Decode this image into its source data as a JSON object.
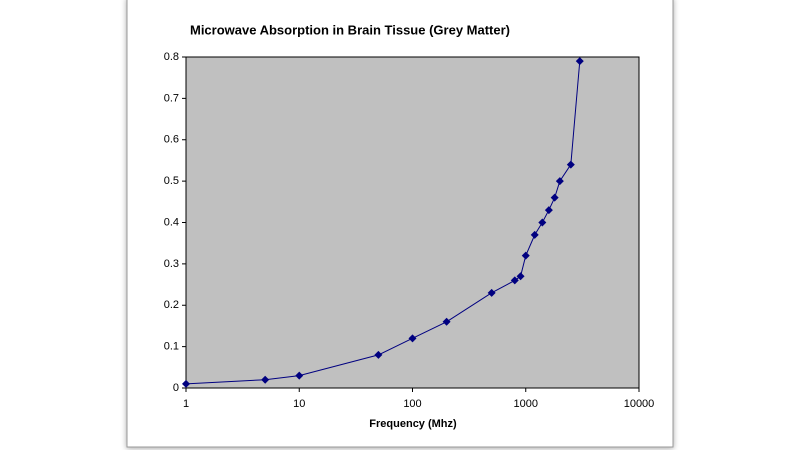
{
  "chart_data": {
    "type": "line",
    "title": "Microwave Absorption in Brain Tissue   (Grey Matter)",
    "x_label": "Frequency (Mhz)",
    "x": [
      1,
      5,
      10,
      50,
      100,
      200,
      500,
      800,
      900,
      1000,
      1200,
      1400,
      1600,
      1800,
      2000,
      2500,
      3000
    ],
    "series": [
      {
        "color": "#000080",
        "values": [
          0.01,
          0.02,
          0.03,
          0.08,
          0.12,
          0.16,
          0.23,
          0.26,
          0.27,
          0.32,
          0.37,
          0.4,
          0.43,
          0.46,
          0.5,
          0.54,
          0.79
        ]
      }
    ],
    "x_scale": "log",
    "xlim": [
      1,
      10000
    ],
    "xticks": [
      1,
      10,
      100,
      1000,
      10000
    ],
    "ylim": [
      0,
      0.8
    ],
    "yticks": [
      0,
      0.1,
      0.2,
      0.3,
      0.4,
      0.5,
      0.6,
      0.7,
      0.8
    ],
    "plot_background": "#c0c0c0",
    "grid": false,
    "marker": "diamond"
  }
}
